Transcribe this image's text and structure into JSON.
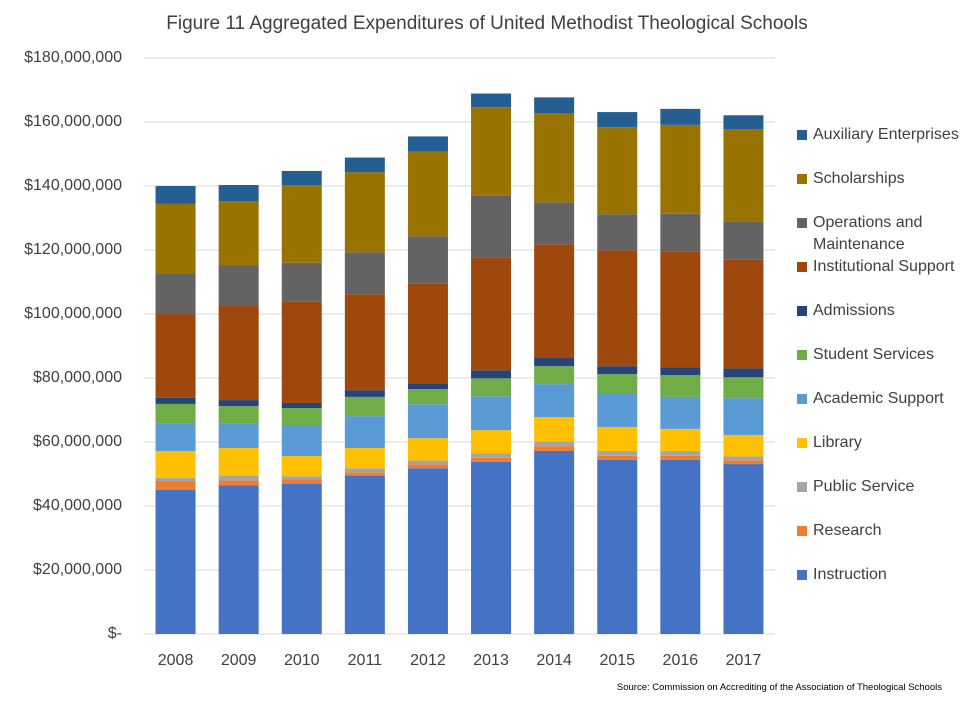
{
  "chart_data": {
    "type": "stacked_bar",
    "title": "Figure 11  Aggregated Expenditures of United Methodist Theological Schools",
    "source": "Source: Commission on Accrediting of the Association of Theological Schools",
    "categories": [
      "2008",
      "2009",
      "2010",
      "2011",
      "2012",
      "2013",
      "2014",
      "2015",
      "2016",
      "2017"
    ],
    "series": [
      {
        "name": "Instruction",
        "color": "#4472c4",
        "values": [
          45000000,
          46500000,
          47000000,
          49500000,
          51800000,
          53800000,
          57200000,
          54400000,
          54400000,
          53100000
        ]
      },
      {
        "name": "Research",
        "color": "#ed7d31",
        "values": [
          2800000,
          1500000,
          1300000,
          1000000,
          1200000,
          1300000,
          1500000,
          1300000,
          1300000,
          1200000
        ]
      },
      {
        "name": "Public Service",
        "color": "#a5a5a5",
        "values": [
          1000000,
          1500000,
          1000000,
          1300000,
          1200000,
          1300000,
          1500000,
          1500000,
          1500000,
          1200000
        ]
      },
      {
        "name": "Library",
        "color": "#ffc000",
        "values": [
          8400000,
          8600000,
          6300000,
          6300000,
          7000000,
          7300000,
          7600000,
          7500000,
          6900000,
          6700000
        ]
      },
      {
        "name": "Academic Support",
        "color": "#5b9bd5",
        "values": [
          8700000,
          7800000,
          9400000,
          10000000,
          10600000,
          10600000,
          10300000,
          10300000,
          10000000,
          11500000
        ]
      },
      {
        "name": "Student Services",
        "color": "#70ad47",
        "values": [
          6000000,
          5300000,
          5600000,
          6000000,
          4700000,
          5600000,
          5600000,
          6200000,
          6800000,
          6500000
        ]
      },
      {
        "name": "Admissions",
        "color": "#264478",
        "values": [
          1900000,
          1900000,
          1600000,
          2100000,
          1800000,
          2500000,
          2800000,
          2500000,
          2500000,
          2800000
        ]
      },
      {
        "name": "Institutional Support",
        "color": "#9e480e",
        "values": [
          26200000,
          29400000,
          31800000,
          30000000,
          31300000,
          35300000,
          35300000,
          36200000,
          36000000,
          34100000
        ]
      },
      {
        "name": "Operations and Maintenance",
        "color": "#636363",
        "values": [
          12500000,
          12800000,
          12000000,
          13100000,
          14700000,
          19400000,
          13100000,
          11300000,
          11900000,
          11900000
        ]
      },
      {
        "name": "Scholarships",
        "color": "#997300",
        "values": [
          21900000,
          20000000,
          24300000,
          25000000,
          26500000,
          27500000,
          27800000,
          27200000,
          27800000,
          28700000
        ]
      },
      {
        "name": "Auxiliary Enterprises",
        "color": "#255e91",
        "values": [
          5600000,
          5000000,
          4400000,
          4600000,
          4700000,
          4300000,
          5000000,
          4700000,
          5000000,
          4400000
        ]
      }
    ],
    "ylim": [
      0,
      180000000
    ],
    "yticks": [
      {
        "value": 0,
        "label": "$-"
      },
      {
        "value": 20000000,
        "label": "$20,000,000"
      },
      {
        "value": 40000000,
        "label": "$40,000,000"
      },
      {
        "value": 60000000,
        "label": "$60,000,000"
      },
      {
        "value": 80000000,
        "label": "$80,000,000"
      },
      {
        "value": 100000000,
        "label": "$100,000,000"
      },
      {
        "value": 120000000,
        "label": "$120,000,000"
      },
      {
        "value": 140000000,
        "label": "$140,000,000"
      },
      {
        "value": 160000000,
        "label": "$160,000,000"
      },
      {
        "value": 180000000,
        "label": "$180,000,000"
      }
    ],
    "grid": true
  }
}
